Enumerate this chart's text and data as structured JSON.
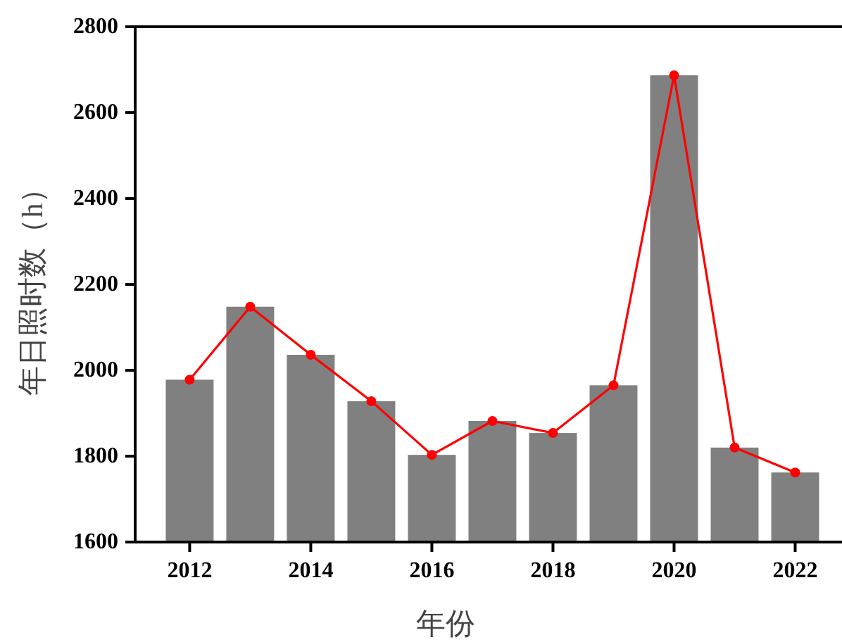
{
  "chart_data": {
    "type": "bar",
    "xlabel": "年份",
    "ylabel": "年日照时数（h）",
    "x": [
      2012,
      2013,
      2014,
      2015,
      2016,
      2017,
      2018,
      2019,
      2020,
      2021,
      2022
    ],
    "series": [
      {
        "color": "#808080",
        "values": [
          1978,
          2148,
          2036,
          1928,
          1803,
          1882,
          1854,
          1965,
          2687,
          1820,
          1762
        ]
      },
      {
        "type": "line",
        "color": "#ff0000",
        "values": [
          1978,
          2148,
          2036,
          1928,
          1803,
          1882,
          1854,
          1965,
          2687,
          1820,
          1762
        ]
      }
    ],
    "xlim": [
      2011.1,
      2022.75
    ],
    "xticks": [
      2012,
      2014,
      2016,
      2018,
      2020,
      2022
    ],
    "ylim": [
      1600,
      2800
    ],
    "yticks": [
      1600,
      1800,
      2000,
      2200,
      2400,
      2600,
      2800
    ],
    "marker": "circle",
    "line_style": "solid",
    "grid": false
  }
}
